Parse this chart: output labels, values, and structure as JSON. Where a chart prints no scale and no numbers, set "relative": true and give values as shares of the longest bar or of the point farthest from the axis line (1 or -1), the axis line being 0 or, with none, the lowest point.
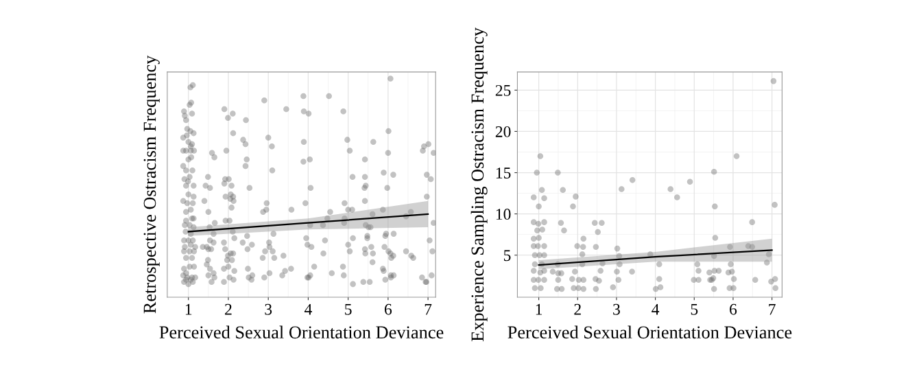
{
  "chart_data": [
    {
      "type": "scatter",
      "relative": true,
      "xlabel": "Perceived Sexual Orientation Deviance",
      "ylabel": "Retrospective Ostracism Frequency",
      "xlim": [
        0.47,
        7.19
      ],
      "xticks": [
        1,
        2,
        3,
        4,
        5,
        6,
        7
      ],
      "grid": true,
      "series": [
        {
          "marker": "circle",
          "color": "#666666",
          "x": [
            1.05,
            1.11,
            1.03,
            1.07,
            0.89,
            0.91,
            0.94,
            1.09,
            0.97,
            1.05,
            1.13,
            0.87,
            0.96,
            1.0,
            1.09,
            0.87,
            0.94,
            1.06,
            1.14,
            1.06,
            1.0,
            1.07,
            0.87,
            0.94,
            1.1,
            0.9,
            0.99,
            0.94,
            1.13,
            1.03,
            1.0,
            1.13,
            0.87,
            0.97,
            1.11,
            1.06,
            0.94,
            1.09,
            0.94,
            1.13,
            0.91,
            1.03,
            1.13,
            0.93,
            1.06,
            0.89,
            1.0,
            1.11,
            0.91,
            1.06,
            1.17,
            0.89,
            1.03,
            1.14,
            0.94,
            1.09,
            0.89,
            1.03,
            1.14,
            0.94,
            0.87,
            0.97,
            1.09,
            1.17,
            0.89,
            1.0,
            1.11,
            0.94,
            1.06,
            1.9,
            1.99,
            2.11,
            2.44,
            2.12,
            2.9,
            3.45,
            2.37,
            2.43,
            3.09,
            3.0,
            1.95,
            1.59,
            1.65,
            2.46,
            2.43,
            3.1,
            1.49,
            1.92,
            2.01,
            1.9,
            2.08,
            1.43,
            1.54,
            2.53,
            1.93,
            2.06,
            2.12,
            2.05,
            2.13,
            1.4,
            2.08,
            2.96,
            2.87,
            2.95,
            3.58,
            1.5,
            1.93,
            2.03,
            1.66,
            1.53,
            1.63,
            2.11,
            2.47,
            2.15,
            3.13,
            1.54,
            1.63,
            1.89,
            1.36,
            1.5,
            1.46,
            1.57,
            1.92,
            2.36,
            2.59,
            2.48,
            3.02,
            3.03,
            2.92,
            3.11,
            1.99,
            2.06,
            2.12,
            2.86,
            3.15,
            3.38,
            1.97,
            2.09,
            1.49,
            1.46,
            1.54,
            1.63,
            1.89,
            2.0,
            2.15,
            2.49,
            3.03,
            3.42,
            3.57,
            3.35,
            1.5,
            1.65,
            1.89,
            1.58,
            2.03,
            2.13,
            2.51,
            2.58,
            2.6,
            2.9,
            6.06,
            3.88,
            4.52,
            3.89,
            4.01,
            4.88,
            6.01,
            4.98,
            5.63,
            3.89,
            5.04,
            6.0,
            3.88,
            4.04,
            5.42,
            6.87,
            6.9,
            7.01,
            7.14,
            5.11,
            5.42,
            5.89,
            6.13,
            6.97,
            7.07,
            4.06,
            5.41,
            5.44,
            5.98,
            6.97,
            3.93,
            4.91,
            5.42,
            5.0,
            5.1,
            4.55,
            5.87,
            5.61,
            6.57,
            6.45,
            4.48,
            4.91,
            4.05,
            4.37,
            4.9,
            5.44,
            5.51,
            5.56,
            7.14,
            3.95,
            3.98,
            4.08,
            4.42,
            5.12,
            5.48,
            5.48,
            5.93,
            5.95,
            6.14,
            7.04,
            5.0,
            5.04,
            5.42,
            5.58,
            5.62,
            5.91,
            6.01,
            6.06,
            6.13,
            6.08,
            6.45,
            6.58,
            6.63,
            7.11,
            5.43,
            4.38,
            4.15,
            4.87,
            4.59,
            4.89,
            5.61,
            5.87,
            5.89,
            3.98,
            4.05,
            4.01,
            5.12,
            5.38,
            5.54,
            5.93,
            6.07,
            6.14,
            6.07,
            6.85,
            6.96,
            6.94,
            7.09
          ],
          "values": [
            0.96,
            0.97,
            0.88,
            0.89,
            0.85,
            0.83,
            0.81,
            0.84,
            0.77,
            0.76,
            0.75,
            0.73,
            0.74,
            0.71,
            0.7,
            0.67,
            0.67,
            0.67,
            0.67,
            0.69,
            0.63,
            0.64,
            0.6,
            0.58,
            0.58,
            0.54,
            0.53,
            0.51,
            0.51,
            0.55,
            0.47,
            0.46,
            0.44,
            0.43,
            0.43,
            0.4,
            0.39,
            0.36,
            0.35,
            0.36,
            0.33,
            0.33,
            0.32,
            0.3,
            0.29,
            0.26,
            0.26,
            0.26,
            0.23,
            0.24,
            0.23,
            0.21,
            0.21,
            0.21,
            0.18,
            0.18,
            0.13,
            0.14,
            0.14,
            0.11,
            0.1,
            0.09,
            0.09,
            0.09,
            0.07,
            0.06,
            0.07,
            0.08,
            0.08,
            0.86,
            0.82,
            0.84,
            0.81,
            0.75,
            0.9,
            0.86,
            0.72,
            0.7,
            0.69,
            0.73,
            0.67,
            0.66,
            0.64,
            0.63,
            0.6,
            0.58,
            0.55,
            0.54,
            0.54,
            0.52,
            0.51,
            0.51,
            0.5,
            0.5,
            0.46,
            0.47,
            0.46,
            0.45,
            0.44,
            0.44,
            0.41,
            0.43,
            0.39,
            0.4,
            0.4,
            0.39,
            0.35,
            0.35,
            0.34,
            0.32,
            0.29,
            0.3,
            0.28,
            0.27,
            0.29,
            0.26,
            0.25,
            0.25,
            0.23,
            0.22,
            0.23,
            0.22,
            0.22,
            0.25,
            0.24,
            0.22,
            0.25,
            0.23,
            0.21,
            0.21,
            0.19,
            0.2,
            0.2,
            0.18,
            0.18,
            0.19,
            0.17,
            0.17,
            0.17,
            0.15,
            0.13,
            0.11,
            0.13,
            0.14,
            0.12,
            0.13,
            0.11,
            0.12,
            0.13,
            0.1,
            0.1,
            0.09,
            0.07,
            0.07,
            0.09,
            0.08,
            0.09,
            0.08,
            0.1,
            0.09,
            1.0,
            0.92,
            0.92,
            0.85,
            0.84,
            0.85,
            0.76,
            0.72,
            0.71,
            0.71,
            0.67,
            0.66,
            0.62,
            0.63,
            0.63,
            0.67,
            0.69,
            0.7,
            0.66,
            0.55,
            0.55,
            0.57,
            0.56,
            0.56,
            0.54,
            0.5,
            0.5,
            0.51,
            0.5,
            0.46,
            0.43,
            0.43,
            0.44,
            0.4,
            0.4,
            0.39,
            0.4,
            0.38,
            0.39,
            0.37,
            0.36,
            0.36,
            0.33,
            0.33,
            0.34,
            0.33,
            0.32,
            0.32,
            0.34,
            0.27,
            0.24,
            0.23,
            0.26,
            0.27,
            0.28,
            0.27,
            0.28,
            0.29,
            0.29,
            0.26,
            0.24,
            0.21,
            0.22,
            0.23,
            0.2,
            0.23,
            0.21,
            0.2,
            0.19,
            0.18,
            0.21,
            0.19,
            0.18,
            0.21,
            0.2,
            0.2,
            0.14,
            0.14,
            0.11,
            0.1,
            0.16,
            0.13,
            0.12,
            0.09,
            0.1,
            0.09,
            0.06,
            0.07,
            0.07,
            0.08,
            0.1,
            0.1,
            0.09,
            0.09,
            0.07,
            0.07,
            0.1
          ]
        },
        {
          "type": "line",
          "marker": "none",
          "color": "#000000",
          "x": [
            1,
            4,
            7
          ],
          "values": [
            0.3,
            0.34,
            0.38
          ],
          "lower": [
            0.28,
            0.31,
            0.32
          ],
          "upper": [
            0.32,
            0.36,
            0.44
          ]
        }
      ]
    },
    {
      "type": "scatter",
      "xlabel": "Perceived Sexual Orientation Deviance",
      "ylabel": "Experience Sampling Ostracism Frequency",
      "xlim": [
        0.45,
        7.26
      ],
      "xticks": [
        1,
        2,
        3,
        4,
        5,
        6,
        7
      ],
      "ylim": [
        -0.1,
        27.2
      ],
      "yticks": [
        5,
        10,
        15,
        20,
        25
      ],
      "grid": true,
      "series": [
        {
          "marker": "circle",
          "color": "#666666",
          "x": [
            1.04,
            0.95,
            1.49,
            1.08,
            1.62,
            0.87,
            1.14,
            1.95,
            1.0,
            1.88,
            0.87,
            0.99,
            1.14,
            1.57,
            1.65,
            0.96,
            1.09,
            2.44,
            2.62,
            2.52,
            0.87,
            1.0,
            2.15,
            0.87,
            0.98,
            1.14,
            1.99,
            2.14,
            2.47,
            0.9,
            1.02,
            1.14,
            2.12,
            0.9,
            1.08,
            1.49,
            2.12,
            2.64,
            0.87,
            1.04,
            1.14,
            1.36,
            1.5,
            1.58,
            1.93,
            2.59,
            0.87,
            0.99,
            1.14,
            1.5,
            2.03,
            2.15,
            1.86,
            2.46,
            2.55,
            0.9,
            1.05,
            1.47,
            1.59,
            1.9,
            2.02,
            2.15,
            2.47,
            3.41,
            3.13,
            4.39,
            4.56,
            4.89,
            3.02,
            3.07,
            3.87,
            3.08,
            4.1,
            3.4,
            3.01,
            3.05,
            4.1,
            2.91,
            4.01,
            4.13,
            5.08,
            4.99,
            5.11,
            5.11,
            7.04,
            6.09,
            5.51,
            5.53,
            7.07,
            6.49,
            5.54,
            5.92,
            6.39,
            6.49,
            5.51,
            6.92,
            6.87,
            5.39,
            5.52,
            5.63,
            5.88,
            5.97,
            5.94,
            5.41,
            5.45,
            5.49,
            6.02,
            6.57,
            6.98,
            7.08,
            5.51,
            5.91,
            6.01,
            7.09
          ],
          "values": [
            17.0,
            15.0,
            15.0,
            12.9,
            12.9,
            12.0,
            11.9,
            12.1,
            10.9,
            10.9,
            9.0,
            8.8,
            9.0,
            8.9,
            8.0,
            8.0,
            8.1,
            8.9,
            8.9,
            7.8,
            7.0,
            7.1,
            7.0,
            6.1,
            6.1,
            6.1,
            6.1,
            6.0,
            6.0,
            5.0,
            5.0,
            5.0,
            5.1,
            3.9,
            3.9,
            3.9,
            3.9,
            4.0,
            3.1,
            2.9,
            3.1,
            3.0,
            2.8,
            2.8,
            3.0,
            3.1,
            2.0,
            2.0,
            2.0,
            2.0,
            2.0,
            2.0,
            2.1,
            2.1,
            1.9,
            1.0,
            1.0,
            0.9,
            0.9,
            1.0,
            1.0,
            0.9,
            0.9,
            14.1,
            13.0,
            13.0,
            12.0,
            13.9,
            5.8,
            4.9,
            5.1,
            3.9,
            3.9,
            3.0,
            3.0,
            2.0,
            2.1,
            1.1,
            0.9,
            1.1,
            3.9,
            2.0,
            2.0,
            3.1,
            26.1,
            17.0,
            15.1,
            10.9,
            11.1,
            9.0,
            7.1,
            6.0,
            6.1,
            6.0,
            4.9,
            5.1,
            4.1,
            2.9,
            3.1,
            3.1,
            2.9,
            3.0,
            3.9,
            2.0,
            2.0,
            2.2,
            2.1,
            2.0,
            1.8,
            2.1,
            0.9,
            1.0,
            1.0,
            1.0
          ]
        },
        {
          "type": "line",
          "marker": "none",
          "color": "#000000",
          "x": [
            1,
            4,
            7
          ],
          "values": [
            3.8,
            4.8,
            5.6
          ],
          "lower": [
            3.3,
            4.2,
            4.2
          ],
          "upper": [
            4.4,
            5.4,
            7.0
          ]
        }
      ]
    }
  ]
}
